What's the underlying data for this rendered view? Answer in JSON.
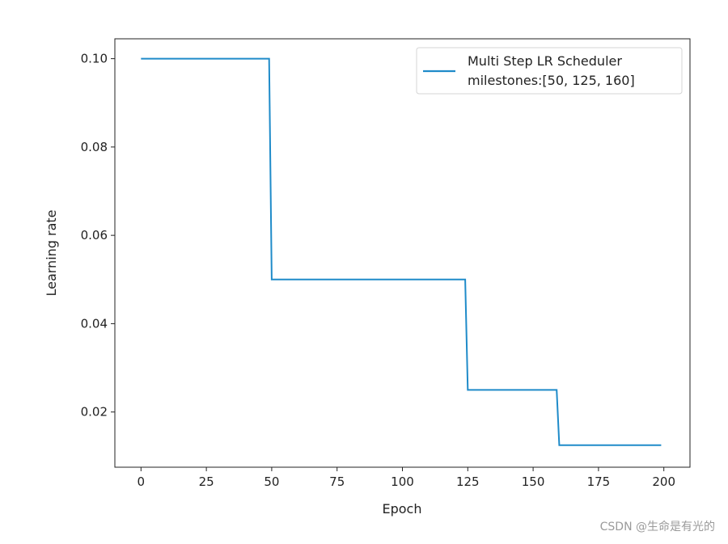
{
  "chart_data": {
    "type": "line",
    "xlabel": "Epoch",
    "ylabel": "Learning rate",
    "xlim": [
      -10,
      210
    ],
    "ylim": [
      0.0075,
      0.1045
    ],
    "xticks": [
      0,
      25,
      50,
      75,
      100,
      125,
      150,
      175,
      200
    ],
    "xtick_labels": [
      "0",
      "25",
      "50",
      "75",
      "100",
      "125",
      "150",
      "175",
      "200"
    ],
    "yticks": [
      0.02,
      0.04,
      0.06,
      0.08,
      0.1
    ],
    "ytick_labels": [
      "0.02",
      "0.04",
      "0.06",
      "0.08",
      "0.10"
    ],
    "grid": false,
    "legend_position": "top-right",
    "series": [
      {
        "name_lines": [
          "Multi Step LR Scheduler",
          "milestones:[50, 125, 160]"
        ],
        "color": "#1f8bc9",
        "points": [
          [
            0,
            0.1
          ],
          [
            49,
            0.1
          ],
          [
            50,
            0.05
          ],
          [
            124,
            0.05
          ],
          [
            125,
            0.025
          ],
          [
            159,
            0.025
          ],
          [
            160,
            0.0125
          ],
          [
            199,
            0.0125
          ]
        ]
      }
    ]
  },
  "watermark": "CSDN @生命是有光的"
}
